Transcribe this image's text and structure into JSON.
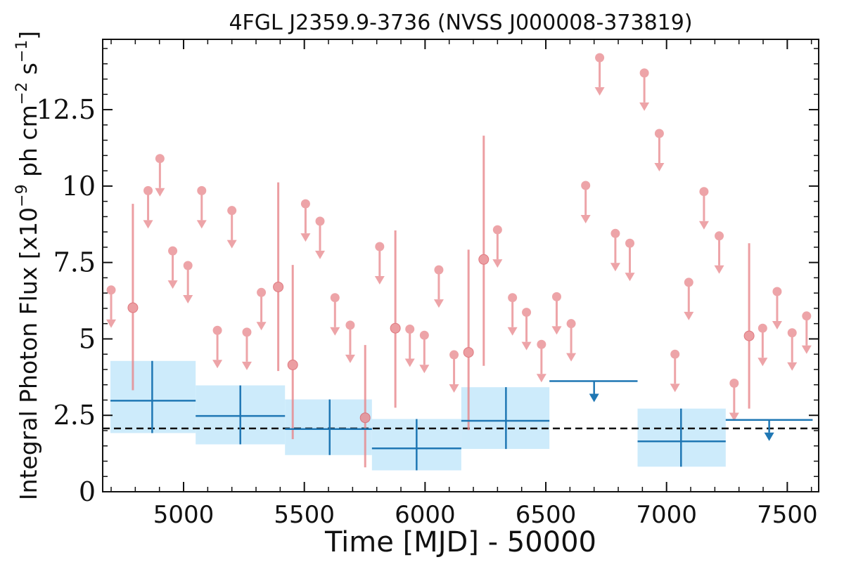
{
  "chart_data": {
    "type": "scatter",
    "title": "4FGL J2359.9-3736 (NVSS J000008-373819)",
    "xlabel": "Time [MJD] - 50000",
    "ylabel_main": "Integral Photon Flux [x10",
    "ylabel_exp": "−9",
    "ylabel_mid": " ph cm",
    "ylabel_exp2": "−2",
    "ylabel_tail": " s",
    "ylabel_exp3": "−1",
    "ylabel_close": "]",
    "xlim": [
      4665,
      7630
    ],
    "ylim": [
      0,
      14.8
    ],
    "xticks": [
      5000,
      5500,
      6000,
      6500,
      7000,
      7500
    ],
    "xtick_labels": [
      "5000",
      "5500",
      "6000",
      "6500",
      "7000",
      "7500"
    ],
    "yticks": [
      0,
      2.5,
      5,
      7.5,
      10,
      12.5
    ],
    "ytick_labels": [
      "0",
      "2.5",
      "5",
      "7.5",
      "10",
      "12.5"
    ],
    "reference_line": 2.07,
    "colors": {
      "short_bins": "#e8868b",
      "long_bins": "#1f77b4",
      "long_bins_band": "#cdebfb",
      "reference_line": "#111111"
    },
    "short_bins": {
      "upper_limits": [
        {
          "x": 4700,
          "y": 6.6
        },
        {
          "x": 4853,
          "y": 9.85
        },
        {
          "x": 4902,
          "y": 10.9
        },
        {
          "x": 4955,
          "y": 7.88
        },
        {
          "x": 5018,
          "y": 7.4
        },
        {
          "x": 5075,
          "y": 9.85
        },
        {
          "x": 5140,
          "y": 5.28
        },
        {
          "x": 5200,
          "y": 9.2
        },
        {
          "x": 5262,
          "y": 5.22
        },
        {
          "x": 5322,
          "y": 6.52
        },
        {
          "x": 5505,
          "y": 9.42
        },
        {
          "x": 5565,
          "y": 8.85
        },
        {
          "x": 5627,
          "y": 6.35
        },
        {
          "x": 5690,
          "y": 5.45
        },
        {
          "x": 5812,
          "y": 8.02
        },
        {
          "x": 5937,
          "y": 5.32
        },
        {
          "x": 5997,
          "y": 5.12
        },
        {
          "x": 6057,
          "y": 7.26
        },
        {
          "x": 6120,
          "y": 4.48
        },
        {
          "x": 6300,
          "y": 8.57
        },
        {
          "x": 6362,
          "y": 6.35
        },
        {
          "x": 6420,
          "y": 5.87
        },
        {
          "x": 6482,
          "y": 4.82
        },
        {
          "x": 6545,
          "y": 6.38
        },
        {
          "x": 6605,
          "y": 5.5
        },
        {
          "x": 6665,
          "y": 10.02
        },
        {
          "x": 6723,
          "y": 14.2
        },
        {
          "x": 6788,
          "y": 8.45
        },
        {
          "x": 6848,
          "y": 8.13
        },
        {
          "x": 6908,
          "y": 13.7
        },
        {
          "x": 6970,
          "y": 11.72
        },
        {
          "x": 7035,
          "y": 4.5
        },
        {
          "x": 7092,
          "y": 6.85
        },
        {
          "x": 7155,
          "y": 9.82
        },
        {
          "x": 7218,
          "y": 8.37
        },
        {
          "x": 7280,
          "y": 3.55
        },
        {
          "x": 7398,
          "y": 5.35
        },
        {
          "x": 7458,
          "y": 6.55
        },
        {
          "x": 7520,
          "y": 5.2
        },
        {
          "x": 7580,
          "y": 5.75
        }
      ],
      "detections": [
        {
          "x": 4790,
          "y": 6.02,
          "ylo": 3.32,
          "yhi": 9.42
        },
        {
          "x": 5392,
          "y": 6.7,
          "ylo": 3.95,
          "yhi": 10.12
        },
        {
          "x": 5452,
          "y": 4.15,
          "ylo": 1.72,
          "yhi": 7.42
        },
        {
          "x": 5752,
          "y": 2.42,
          "ylo": 0.8,
          "yhi": 4.8
        },
        {
          "x": 5877,
          "y": 5.35,
          "ylo": 2.75,
          "yhi": 8.55
        },
        {
          "x": 6180,
          "y": 4.56,
          "ylo": 2.02,
          "yhi": 7.92
        },
        {
          "x": 6243,
          "y": 7.6,
          "ylo": 4.12,
          "yhi": 11.65
        },
        {
          "x": 7342,
          "y": 5.1,
          "ylo": 2.72,
          "yhi": 8.13
        }
      ]
    },
    "long_bins": {
      "detections": [
        {
          "x": 4870,
          "xlo": 4697,
          "xhi": 5050,
          "y": 2.98,
          "ylo": 1.92,
          "yhi": 4.28
        },
        {
          "x": 5235,
          "xlo": 5050,
          "xhi": 5420,
          "y": 2.48,
          "ylo": 1.55,
          "yhi": 3.48
        },
        {
          "x": 5605,
          "xlo": 5420,
          "xhi": 5780,
          "y": 2.05,
          "ylo": 1.2,
          "yhi": 3.02
        },
        {
          "x": 5965,
          "xlo": 5780,
          "xhi": 6150,
          "y": 1.42,
          "ylo": 0.7,
          "yhi": 2.38
        },
        {
          "x": 6335,
          "xlo": 6150,
          "xhi": 6515,
          "y": 2.32,
          "ylo": 1.4,
          "yhi": 3.42
        },
        {
          "x": 7060,
          "xlo": 6880,
          "xhi": 7245,
          "y": 1.65,
          "ylo": 0.82,
          "yhi": 2.72
        }
      ],
      "upper_limits": [
        {
          "x": 6700,
          "xlo": 6515,
          "xhi": 6880,
          "y": 3.62
        },
        {
          "x": 7425,
          "xlo": 7245,
          "xhi": 7605,
          "y": 2.35
        }
      ]
    }
  }
}
